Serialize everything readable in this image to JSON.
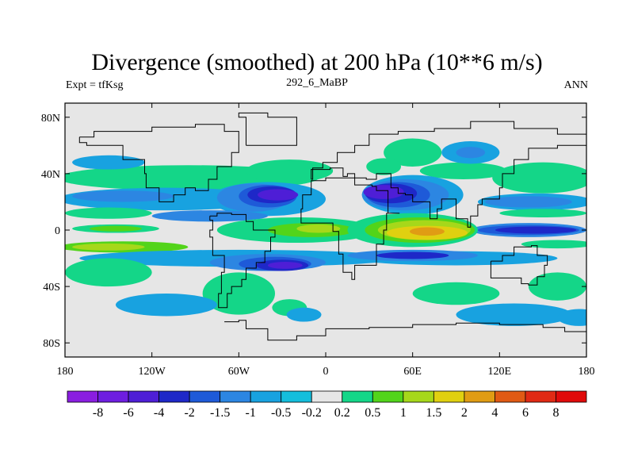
{
  "chart_data": {
    "type": "heatmap",
    "title": "Divergence (smoothed) at 200 hPa (10**6 m/s)",
    "subtitle_left": "Expt = tfKsg",
    "subtitle_center": "292_6_MaBP",
    "subtitle_right": "ANN",
    "x_range": [
      -180,
      180
    ],
    "y_range": [
      -90,
      90
    ],
    "x_ticks": [
      {
        "value": -180,
        "label": "180"
      },
      {
        "value": -120,
        "label": "120W"
      },
      {
        "value": -60,
        "label": "60W"
      },
      {
        "value": 0,
        "label": "0"
      },
      {
        "value": 60,
        "label": "60E"
      },
      {
        "value": 120,
        "label": "120E"
      },
      {
        "value": 180,
        "label": "180"
      }
    ],
    "y_ticks": [
      {
        "value": 80,
        "label": "80N"
      },
      {
        "value": 40,
        "label": "40N"
      },
      {
        "value": 0,
        "label": "0"
      },
      {
        "value": -40,
        "label": "40S"
      },
      {
        "value": -80,
        "label": "80S"
      }
    ],
    "colorbar": {
      "labels": [
        "-8",
        "-6",
        "-4",
        "-2",
        "-1.5",
        "-1",
        "-0.5",
        "-0.2",
        "0.2",
        "0.5",
        "1",
        "1.5",
        "2",
        "4",
        "6",
        "8"
      ],
      "colors": [
        "#8a1ee0",
        "#6e1ee0",
        "#4e1ed6",
        "#1e28c8",
        "#1e5ad8",
        "#2c86e2",
        "#18a2e0",
        "#14bedc",
        "#e6e6e6",
        "#14d688",
        "#52d41a",
        "#a6d81a",
        "#e0d010",
        "#e09c14",
        "#e05a14",
        "#e02a14",
        "#e00a0a"
      ]
    },
    "background_value_color": "#e6e6e6",
    "features": [
      {
        "name": "ne-pacific-negative-jet",
        "band": "-1",
        "lon": [
          -165,
          -40
        ],
        "lat": [
          17,
          24
        ]
      },
      {
        "name": "n-atlantic-strong-negative",
        "band": "-4",
        "lon": [
          -65,
          0
        ],
        "lat": [
          18,
          31
        ]
      },
      {
        "name": "asia-strong-negative",
        "band": "-4",
        "lon": [
          30,
          85
        ],
        "lat": [
          17,
          35
        ]
      },
      {
        "name": "indian-ocean-peak-positive",
        "band": "4",
        "lon": [
          55,
          90
        ],
        "lat": [
          -7,
          3
        ]
      },
      {
        "name": "w-pacific-negative",
        "band": "-2",
        "lon": [
          110,
          175
        ],
        "lat": [
          -4,
          4
        ]
      },
      {
        "name": "s-atlantic-strong-negative",
        "band": "-4",
        "lon": [
          -45,
          -10
        ],
        "lat": [
          -30,
          -21
        ]
      },
      {
        "name": "subtropical-sh-positive",
        "band": "0.5",
        "lon": [
          -180,
          180
        ],
        "lat": [
          -55,
          -30
        ]
      }
    ]
  }
}
